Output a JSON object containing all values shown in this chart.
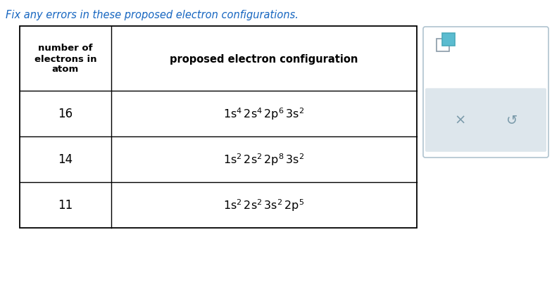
{
  "title": "Fix any errors in these proposed electron configurations.",
  "title_color": "#1565C0",
  "col1_header": "number of\nelectrons in\natom",
  "col2_header": "proposed electron configuration",
  "rows": [
    {
      "electrons": "16",
      "config_parts": [
        {
          "text": "1s",
          "sup": "4"
        },
        {
          "text": " 2s",
          "sup": "4"
        },
        {
          "text": " 2p",
          "sup": "6"
        },
        {
          "text": " 3s",
          "sup": "2"
        }
      ]
    },
    {
      "electrons": "14",
      "config_parts": [
        {
          "text": "1s",
          "sup": "2"
        },
        {
          "text": " 2s",
          "sup": "2"
        },
        {
          "text": " 2p",
          "sup": "8"
        },
        {
          "text": " 3s",
          "sup": "2"
        }
      ]
    },
    {
      "electrons": "11",
      "config_parts": [
        {
          "text": "1s",
          "sup": "2"
        },
        {
          "text": " 2s",
          "sup": "2"
        },
        {
          "text": " 3s",
          "sup": "2"
        },
        {
          "text": " 2p",
          "sup": "5"
        }
      ]
    }
  ],
  "background_color": "#ffffff",
  "text_color": "#000000",
  "panel_bg": "#e8eef2",
  "panel_border": "#b0c4d0",
  "panel_inner_bg": "#dde6ec"
}
